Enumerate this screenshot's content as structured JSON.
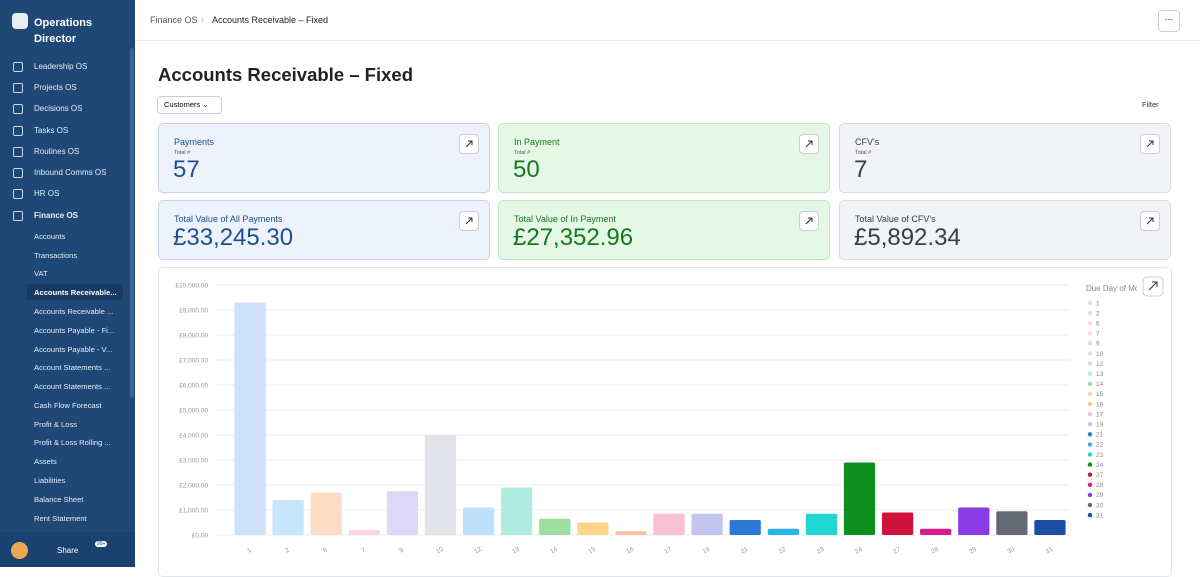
{
  "sidebar": {
    "workspace": "Operations Director",
    "nav": [
      "Leadership OS",
      "Projects OS",
      "Decisions OS",
      "Tasks OS",
      "Routines OS",
      "Inbound Comms OS",
      "HR OS",
      "Finance OS"
    ],
    "finance_items": [
      "Accounts",
      "Transactions",
      "VAT",
      "Accounts Receivable...",
      "Accounts Receivable ...",
      "Accounts Payable - Fi...",
      "Accounts Payable - V...",
      "Account Statements ...",
      "Account Statements ...",
      "Cash Flow Forecast",
      "Profit & Loss",
      "Profit & Loss Rolling ...",
      "Assets",
      "Liabilities",
      "Balance Sheet",
      "Rent Statement"
    ],
    "share": "Share",
    "badge": "99+"
  },
  "breadcrumb": [
    "Finance OS",
    "Accounts Receivable – Fixed"
  ],
  "page": {
    "title": "Accounts Receivable – Fixed",
    "dropdown": "Customers",
    "filter": "Filter"
  },
  "cards": [
    {
      "title": "Payments",
      "subtitle": "Total #",
      "value": 57
    },
    {
      "title": "In Payment",
      "subtitle": "Total #",
      "value": 50
    },
    {
      "title": "CFV's",
      "subtitle": "Total #",
      "value": 7
    },
    {
      "title": "Total Value of All Payments",
      "value": "£33,245.30"
    },
    {
      "title": "Total Value of In Payment",
      "value": "£27,352.96"
    },
    {
      "title": "Total Value of CFV's",
      "value": "£5,892.34"
    }
  ],
  "chart_data": {
    "type": "bar",
    "legend_title": "Due Day of Month",
    "categories": [
      "1",
      "2",
      "6",
      "7",
      "9",
      "10",
      "12",
      "13",
      "14",
      "15",
      "16",
      "17",
      "19",
      "21",
      "22",
      "23",
      "24",
      "27",
      "28",
      "29",
      "30",
      "31"
    ],
    "values": [
      9300,
      1400,
      1700,
      200,
      1750,
      4000,
      1100,
      1900,
      650,
      500,
      150,
      850,
      850,
      600,
      250,
      850,
      2900,
      900,
      250,
      1100,
      950,
      600
    ],
    "colors": [
      "#cfe0fb",
      "#c5e6fb",
      "#fddcc5",
      "#fbd6e1",
      "#ddd8f8",
      "#e2e4e9",
      "#bde1fb",
      "#b0ede0",
      "#9edfa0",
      "#fcd58a",
      "#fbbf9f",
      "#f9c0d6",
      "#c5c5f2",
      "#2b78d6",
      "#29b6e5",
      "#1fd7d0",
      "#0c8f1f",
      "#d0133d",
      "#d61c8f",
      "#8a3be6",
      "#666a75",
      "#1a4ea3"
    ],
    "ylim": [
      0,
      10000
    ],
    "yticks": [
      {
        "value": 0,
        "label": "£0.00"
      },
      {
        "value": 1000,
        "label": "£1,000.00"
      },
      {
        "value": 2000,
        "label": "£2,000.00"
      },
      {
        "value": 3000,
        "label": "£3,000.00"
      },
      {
        "value": 4000,
        "label": "£4,000.00"
      },
      {
        "value": 5000,
        "label": "£5,000.00"
      },
      {
        "value": 6000,
        "label": "£6,000.00"
      },
      {
        "value": 7000,
        "label": "£7,000.00"
      },
      {
        "value": 8000,
        "label": "£8,000.00"
      },
      {
        "value": 9000,
        "label": "£9,000.00"
      },
      {
        "value": 10000,
        "label": "£10,000.00"
      }
    ],
    "grid": true
  }
}
